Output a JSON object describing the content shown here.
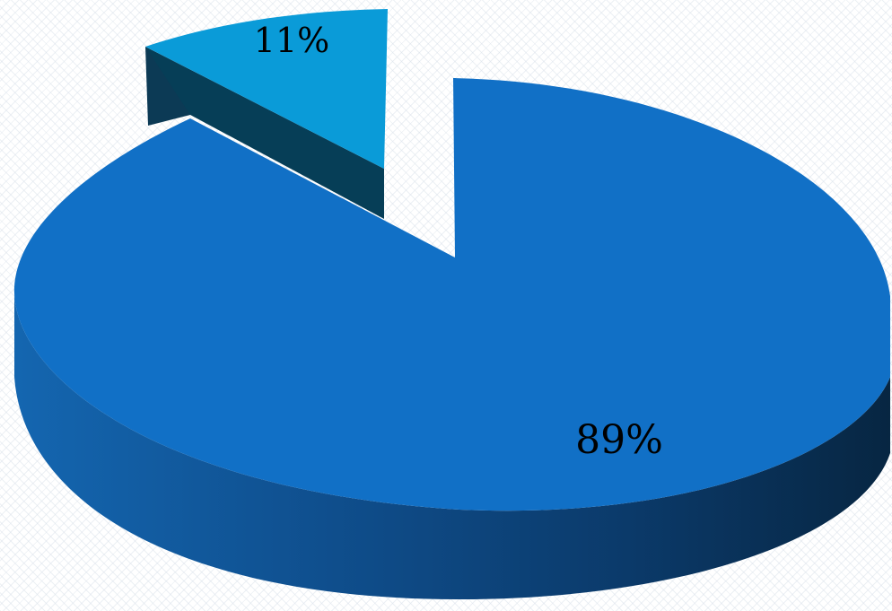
{
  "chart_data": {
    "type": "pie",
    "style": "3d-exploded",
    "slices": [
      {
        "value": 89,
        "label": "89%",
        "color": "#1170C6",
        "side_color": "#0E4F8C"
      },
      {
        "value": 11,
        "label": "11%",
        "color": "#0A9BD8",
        "side_color": "#063E57"
      }
    ],
    "legend": false
  }
}
